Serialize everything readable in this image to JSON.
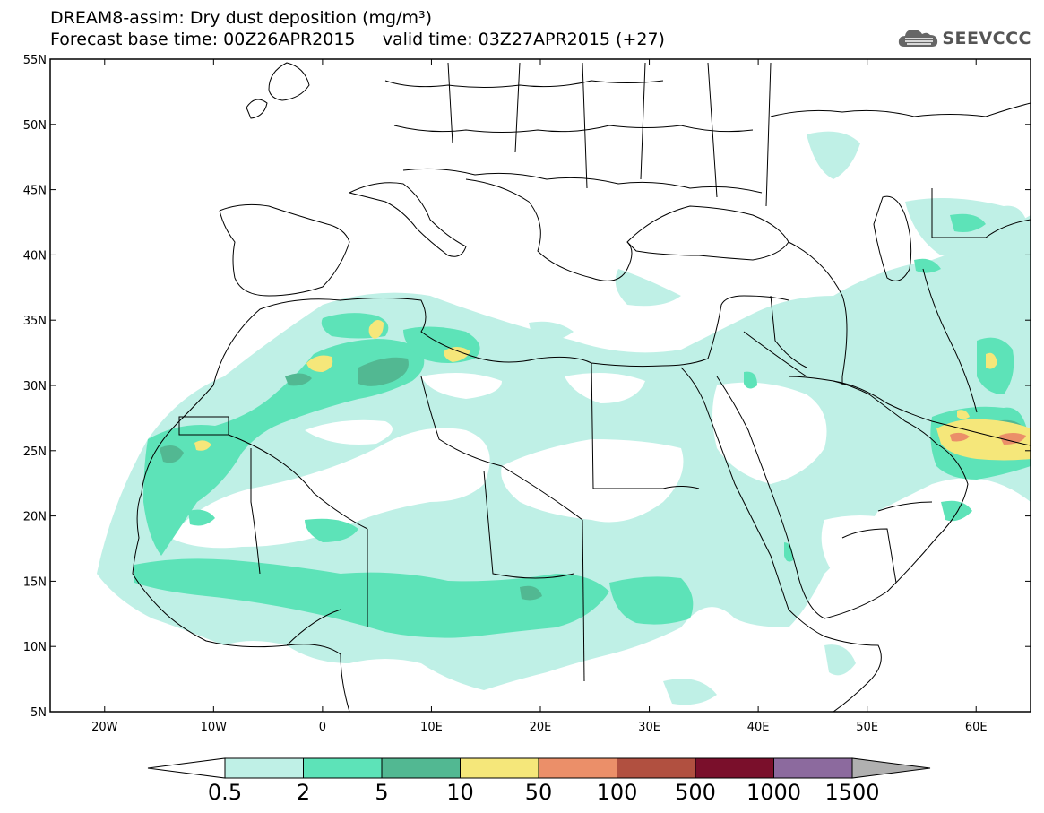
{
  "header": {
    "title_line": "DREAM8-assim: Dry dust deposition (mg/m³)",
    "base_time_line": "Forecast base time: 00Z26APR2015",
    "valid_time_line": "valid time: 03Z27APR2015 (+27)"
  },
  "logo": {
    "text": "SEEVCCC",
    "icon": "cloud-icon"
  },
  "map": {
    "lon_range": [
      -25,
      65
    ],
    "lat_range": [
      5,
      55
    ],
    "lat_labels": [
      "5N",
      "10N",
      "15N",
      "20N",
      "25N",
      "30N",
      "35N",
      "40N",
      "45N",
      "50N",
      "55N"
    ],
    "lon_labels": [
      "20W",
      "10W",
      "0",
      "10E",
      "20E",
      "30E",
      "40E",
      "50E",
      "60E"
    ]
  },
  "colorbar": {
    "labels": [
      "0.5",
      "2",
      "5",
      "10",
      "50",
      "100",
      "500",
      "1000",
      "1500"
    ],
    "colors": [
      "#bff0e6",
      "#5de3b8",
      "#52b892",
      "#f5e77a",
      "#eb8f69",
      "#b15040",
      "#7a0f2b",
      "#8c6a9e",
      "#b0b0b0"
    ],
    "low_end_color": "#ffffff"
  }
}
